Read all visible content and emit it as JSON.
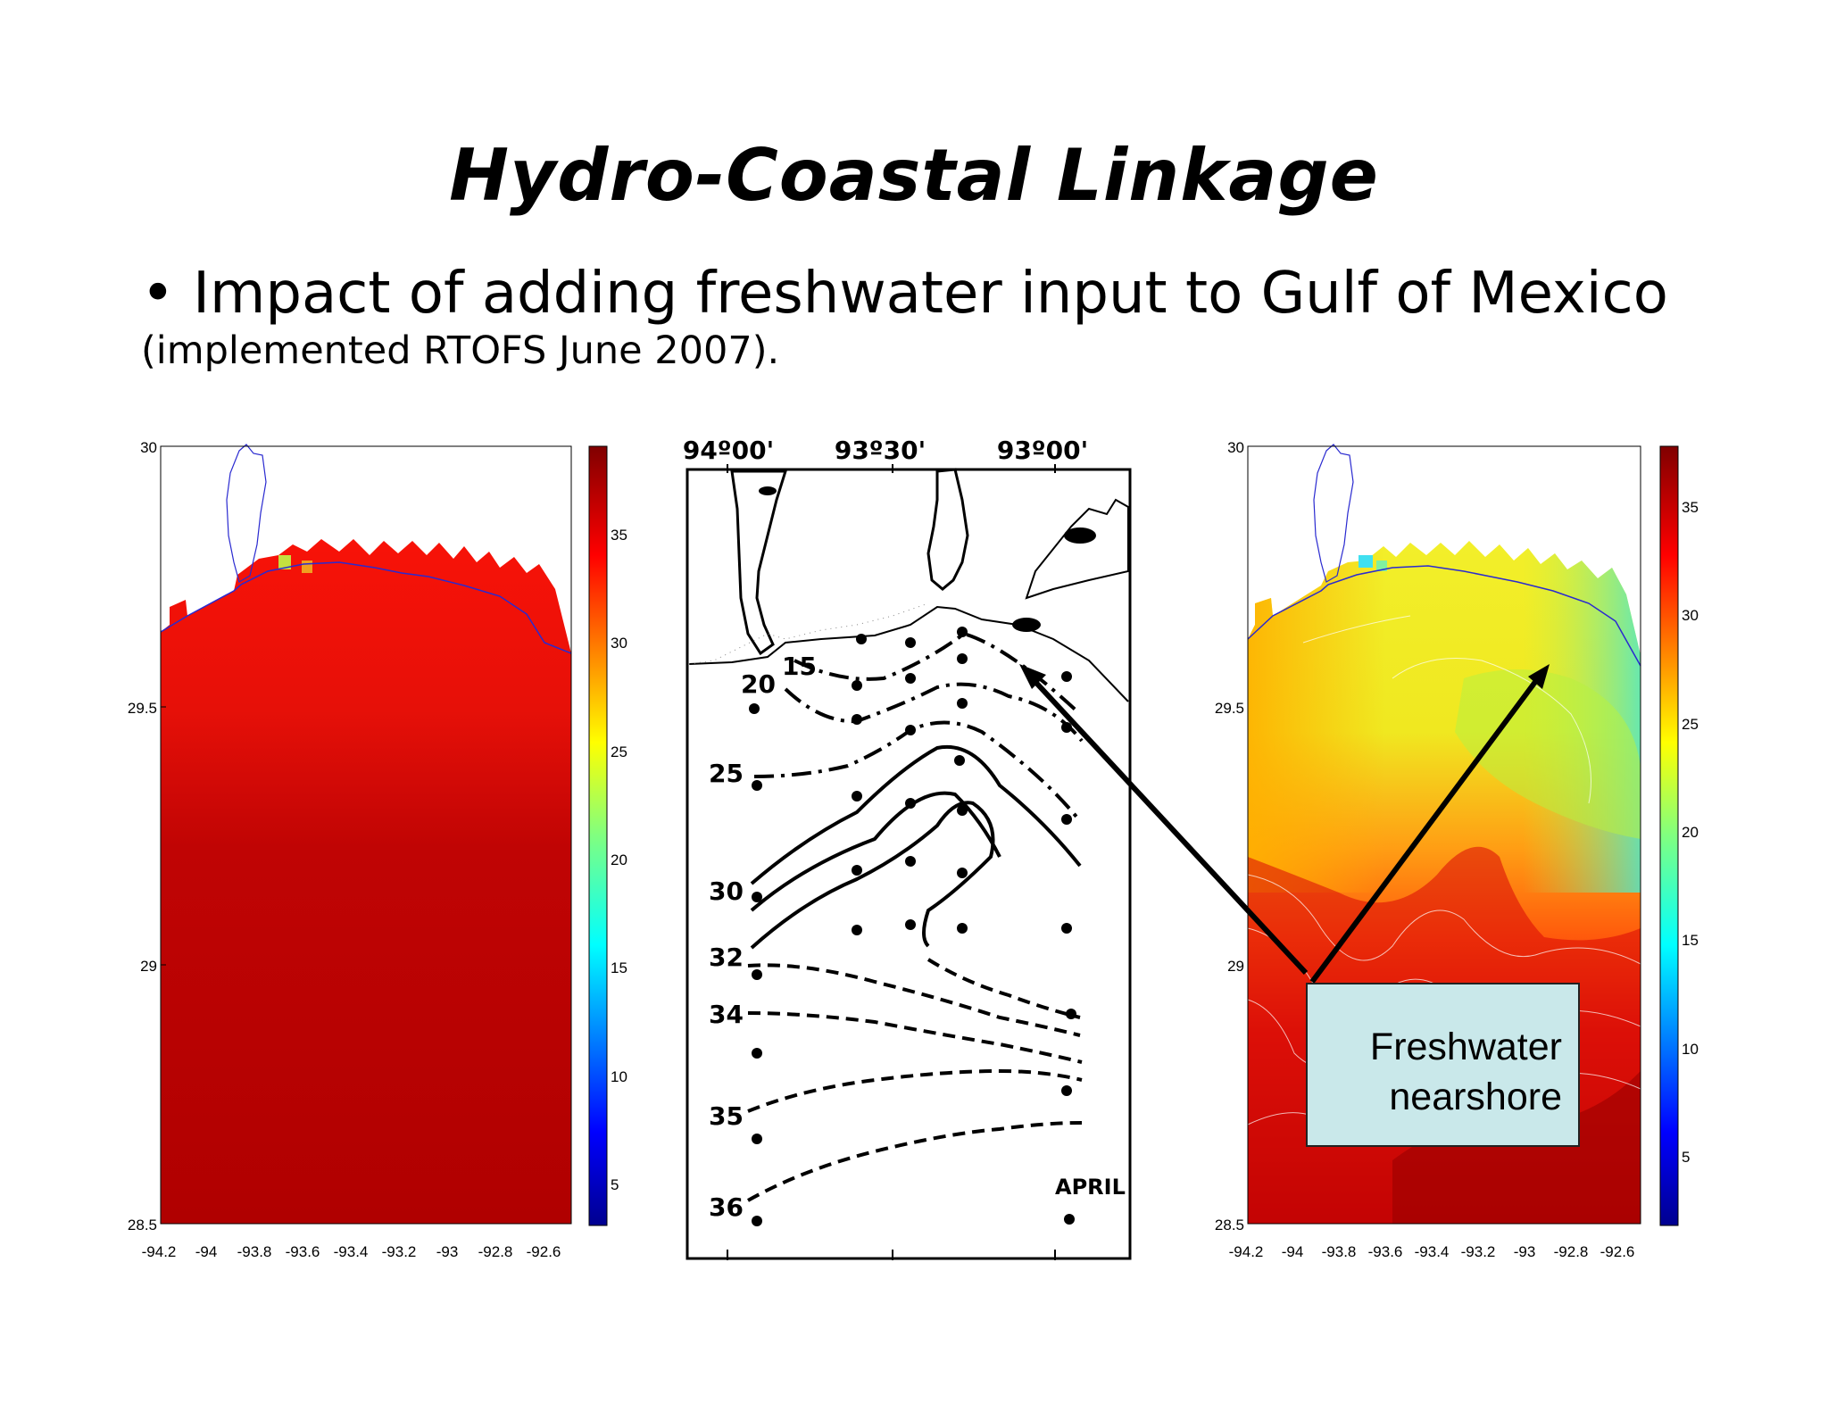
{
  "slide": {
    "title": "Hydro-Coastal Linkage",
    "bullet": "• Impact of adding freshwater input to Gulf of Mexico",
    "subbullet": "(implemented RTOFS June 2007)."
  },
  "left_map": {
    "y_ticks": [
      "30",
      "29.5",
      "29",
      "28.5"
    ],
    "x_ticks": [
      "-94.2",
      "-94",
      "-93.8",
      "-93.6",
      "-93.4",
      "-93.2",
      "-93",
      "-92.8",
      "-92.6"
    ],
    "colorbar_ticks": [
      "35",
      "30",
      "25",
      "20",
      "15",
      "10",
      "5"
    ]
  },
  "center_map": {
    "top_labels": [
      "94º00'",
      "93º30'",
      "93º00'"
    ],
    "contour_labels": [
      "15",
      "20",
      "25",
      "30",
      "32",
      "34",
      "35",
      "36"
    ],
    "month": "APRIL"
  },
  "right_map": {
    "y_ticks": [
      "30",
      "29.5",
      "29",
      "28.5"
    ],
    "x_ticks": [
      "-94.2",
      "-94",
      "-93.8",
      "-93.6",
      "-93.4",
      "-93.2",
      "-93",
      "-92.8",
      "-92.6"
    ],
    "colorbar_ticks": [
      "35",
      "30",
      "25",
      "20",
      "15",
      "10",
      "5"
    ]
  },
  "callout": {
    "line1": "Freshwater",
    "line2": "nearshore"
  },
  "colors": {
    "salty_red": "#b30000",
    "red": "#e81c0c",
    "orange": "#ff8a10",
    "yellow": "#ecf020",
    "cyan": "#28e6e0",
    "blue": "#00008f",
    "callout_bg": "#c9e8ea",
    "coast_line": "#2a2ad0"
  }
}
